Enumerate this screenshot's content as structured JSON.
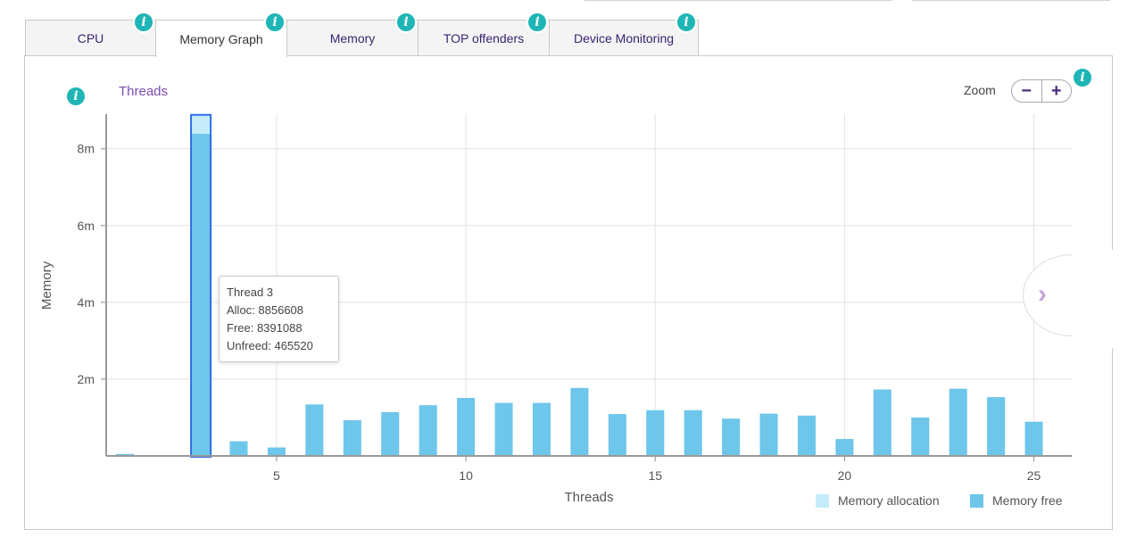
{
  "tabs": [
    {
      "label": "CPU",
      "active": false
    },
    {
      "label": "Memory Graph",
      "active": true
    },
    {
      "label": "Memory",
      "active": false
    },
    {
      "label": "TOP offenders",
      "active": false
    },
    {
      "label": "Device Monitoring",
      "active": false
    }
  ],
  "info_glyph": "i",
  "subtitle": "Threads",
  "zoom": {
    "label": "Zoom",
    "minus": "−",
    "plus": "+"
  },
  "tooltip": {
    "title": "Thread 3",
    "alloc": "Alloc: 8856608",
    "free": "Free: 8391088",
    "unfreed": "Unfreed: 465520"
  },
  "next_glyph": "›",
  "colors": {
    "allocation": "#c6ecfa",
    "free": "#6ec6ea",
    "highlight": "#2b6de8",
    "accent": "#1fb5b5",
    "tab_text": "#3a2470"
  },
  "chart_data": {
    "type": "bar",
    "xlabel": "Threads",
    "ylabel": "Memory",
    "xlim": [
      0.5,
      26
    ],
    "ylim": [
      0,
      8.9
    ],
    "y_ticks": [
      {
        "v": 2,
        "label": "2m"
      },
      {
        "v": 4,
        "label": "4m"
      },
      {
        "v": 6,
        "label": "6m"
      },
      {
        "v": 8,
        "label": "8m"
      }
    ],
    "x_ticks": [
      5,
      10,
      15,
      20,
      25
    ],
    "grid": true,
    "legend_position": "bottom-right",
    "series": [
      {
        "name": "Memory allocation",
        "color": "#c6ecfa",
        "values": [
          0.05,
          0,
          8.86,
          0.38,
          0.22,
          1.34,
          0.93,
          1.14,
          1.32,
          1.51,
          1.38,
          1.38,
          1.77,
          1.09,
          1.19,
          1.19,
          0.97,
          1.1,
          1.05,
          0.44,
          1.73,
          1.0,
          1.75,
          1.53,
          0.89
        ]
      },
      {
        "name": "Memory free",
        "color": "#6ec6ea",
        "values": [
          0.05,
          0,
          8.39,
          0.38,
          0.22,
          1.34,
          0.93,
          1.14,
          1.32,
          1.51,
          1.38,
          1.38,
          1.77,
          1.09,
          1.19,
          1.19,
          0.97,
          1.1,
          1.05,
          0.44,
          1.73,
          1.0,
          1.75,
          1.53,
          0.89
        ]
      }
    ],
    "x": [
      1,
      2,
      3,
      4,
      5,
      6,
      7,
      8,
      9,
      10,
      11,
      12,
      13,
      14,
      15,
      16,
      17,
      18,
      19,
      20,
      21,
      22,
      23,
      24,
      25
    ],
    "highlighted_x": 3
  }
}
